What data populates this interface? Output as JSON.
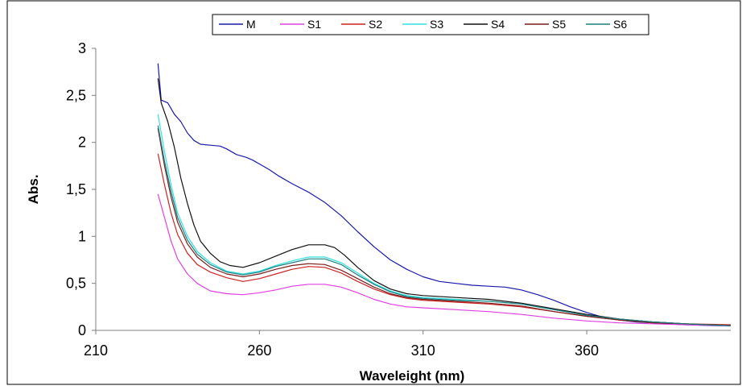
{
  "chart_data": {
    "type": "line",
    "title": "",
    "xlabel": "Waveleight (nm)",
    "ylabel": "Abs.",
    "xlim": [
      210,
      404
    ],
    "ylim": [
      0,
      3
    ],
    "xticks": [
      "210",
      "260",
      "310",
      "360"
    ],
    "yticks": [
      "0",
      "0,5",
      "1",
      "1,5",
      "2",
      "2,5",
      "3"
    ],
    "grid": false,
    "legend_position": "top",
    "series": [
      {
        "name": "M",
        "color": "#1a1aa8",
        "points": [
          [
            229,
            2.84
          ],
          [
            230,
            2.45
          ],
          [
            232,
            2.42
          ],
          [
            234,
            2.3
          ],
          [
            236,
            2.22
          ],
          [
            238,
            2.1
          ],
          [
            240,
            2.02
          ],
          [
            242,
            1.98
          ],
          [
            245,
            1.97
          ],
          [
            248,
            1.96
          ],
          [
            250,
            1.93
          ],
          [
            253,
            1.87
          ],
          [
            256,
            1.84
          ],
          [
            258,
            1.81
          ],
          [
            260,
            1.77
          ],
          [
            263,
            1.71
          ],
          [
            266,
            1.64
          ],
          [
            270,
            1.56
          ],
          [
            275,
            1.47
          ],
          [
            280,
            1.36
          ],
          [
            285,
            1.22
          ],
          [
            290,
            1.05
          ],
          [
            295,
            0.89
          ],
          [
            300,
            0.75
          ],
          [
            305,
            0.65
          ],
          [
            310,
            0.57
          ],
          [
            315,
            0.52
          ],
          [
            320,
            0.5
          ],
          [
            325,
            0.48
          ],
          [
            330,
            0.47
          ],
          [
            335,
            0.46
          ],
          [
            340,
            0.43
          ],
          [
            345,
            0.38
          ],
          [
            350,
            0.32
          ],
          [
            355,
            0.25
          ],
          [
            360,
            0.19
          ],
          [
            365,
            0.14
          ],
          [
            370,
            0.11
          ],
          [
            375,
            0.09
          ],
          [
            380,
            0.08
          ],
          [
            390,
            0.06
          ],
          [
            400,
            0.05
          ],
          [
            404,
            0.05
          ]
        ]
      },
      {
        "name": "S1",
        "color": "#e040e0",
        "points": [
          [
            229,
            1.45
          ],
          [
            231,
            1.2
          ],
          [
            233,
            0.95
          ],
          [
            235,
            0.76
          ],
          [
            238,
            0.6
          ],
          [
            241,
            0.5
          ],
          [
            245,
            0.42
          ],
          [
            250,
            0.39
          ],
          [
            255,
            0.38
          ],
          [
            260,
            0.4
          ],
          [
            265,
            0.43
          ],
          [
            270,
            0.47
          ],
          [
            275,
            0.49
          ],
          [
            280,
            0.49
          ],
          [
            285,
            0.46
          ],
          [
            290,
            0.4
          ],
          [
            295,
            0.33
          ],
          [
            300,
            0.28
          ],
          [
            305,
            0.25
          ],
          [
            310,
            0.24
          ],
          [
            320,
            0.22
          ],
          [
            330,
            0.2
          ],
          [
            340,
            0.17
          ],
          [
            350,
            0.13
          ],
          [
            360,
            0.1
          ],
          [
            370,
            0.08
          ],
          [
            380,
            0.07
          ],
          [
            390,
            0.06
          ],
          [
            404,
            0.05
          ]
        ]
      },
      {
        "name": "S2",
        "color": "#cc2222",
        "points": [
          [
            229,
            1.88
          ],
          [
            231,
            1.55
          ],
          [
            233,
            1.25
          ],
          [
            235,
            1.02
          ],
          [
            238,
            0.82
          ],
          [
            241,
            0.7
          ],
          [
            245,
            0.62
          ],
          [
            250,
            0.56
          ],
          [
            255,
            0.52
          ],
          [
            260,
            0.55
          ],
          [
            265,
            0.6
          ],
          [
            270,
            0.65
          ],
          [
            275,
            0.68
          ],
          [
            280,
            0.67
          ],
          [
            285,
            0.61
          ],
          [
            290,
            0.52
          ],
          [
            295,
            0.44
          ],
          [
            300,
            0.38
          ],
          [
            305,
            0.34
          ],
          [
            310,
            0.32
          ],
          [
            320,
            0.3
          ],
          [
            330,
            0.28
          ],
          [
            340,
            0.25
          ],
          [
            350,
            0.2
          ],
          [
            360,
            0.15
          ],
          [
            370,
            0.11
          ],
          [
            380,
            0.09
          ],
          [
            390,
            0.07
          ],
          [
            404,
            0.06
          ]
        ]
      },
      {
        "name": "S3",
        "color": "#33e0e0",
        "points": [
          [
            229,
            2.3
          ],
          [
            231,
            1.9
          ],
          [
            233,
            1.55
          ],
          [
            235,
            1.25
          ],
          [
            238,
            1.0
          ],
          [
            241,
            0.84
          ],
          [
            245,
            0.72
          ],
          [
            250,
            0.63
          ],
          [
            255,
            0.6
          ],
          [
            260,
            0.63
          ],
          [
            265,
            0.69
          ],
          [
            270,
            0.74
          ],
          [
            275,
            0.78
          ],
          [
            280,
            0.78
          ],
          [
            285,
            0.72
          ],
          [
            290,
            0.61
          ],
          [
            295,
            0.5
          ],
          [
            300,
            0.42
          ],
          [
            305,
            0.37
          ],
          [
            310,
            0.35
          ],
          [
            320,
            0.33
          ],
          [
            330,
            0.31
          ],
          [
            340,
            0.28
          ],
          [
            350,
            0.22
          ],
          [
            360,
            0.16
          ],
          [
            370,
            0.12
          ],
          [
            380,
            0.09
          ],
          [
            390,
            0.07
          ],
          [
            404,
            0.05
          ]
        ]
      },
      {
        "name": "S4",
        "color": "#111111",
        "points": [
          [
            229,
            2.68
          ],
          [
            230,
            2.42
          ],
          [
            232,
            2.22
          ],
          [
            234,
            1.95
          ],
          [
            236,
            1.62
          ],
          [
            238,
            1.35
          ],
          [
            240,
            1.12
          ],
          [
            242,
            0.95
          ],
          [
            245,
            0.82
          ],
          [
            248,
            0.73
          ],
          [
            251,
            0.69
          ],
          [
            255,
            0.67
          ],
          [
            260,
            0.72
          ],
          [
            265,
            0.79
          ],
          [
            270,
            0.86
          ],
          [
            275,
            0.91
          ],
          [
            280,
            0.91
          ],
          [
            283,
            0.88
          ],
          [
            286,
            0.8
          ],
          [
            290,
            0.67
          ],
          [
            295,
            0.53
          ],
          [
            300,
            0.44
          ],
          [
            305,
            0.39
          ],
          [
            310,
            0.37
          ],
          [
            320,
            0.35
          ],
          [
            330,
            0.33
          ],
          [
            340,
            0.29
          ],
          [
            350,
            0.23
          ],
          [
            360,
            0.17
          ],
          [
            370,
            0.12
          ],
          [
            380,
            0.09
          ],
          [
            390,
            0.07
          ],
          [
            404,
            0.05
          ]
        ]
      },
      {
        "name": "S5",
        "color": "#7a1c1c",
        "points": [
          [
            229,
            2.15
          ],
          [
            231,
            1.75
          ],
          [
            233,
            1.42
          ],
          [
            235,
            1.15
          ],
          [
            238,
            0.92
          ],
          [
            241,
            0.78
          ],
          [
            245,
            0.67
          ],
          [
            250,
            0.6
          ],
          [
            255,
            0.57
          ],
          [
            260,
            0.6
          ],
          [
            265,
            0.65
          ],
          [
            270,
            0.69
          ],
          [
            275,
            0.71
          ],
          [
            280,
            0.7
          ],
          [
            285,
            0.64
          ],
          [
            290,
            0.55
          ],
          [
            295,
            0.46
          ],
          [
            300,
            0.39
          ],
          [
            305,
            0.35
          ],
          [
            310,
            0.33
          ],
          [
            320,
            0.31
          ],
          [
            330,
            0.29
          ],
          [
            340,
            0.26
          ],
          [
            350,
            0.2
          ],
          [
            360,
            0.15
          ],
          [
            370,
            0.11
          ],
          [
            380,
            0.08
          ],
          [
            390,
            0.07
          ],
          [
            404,
            0.05
          ]
        ]
      },
      {
        "name": "S6",
        "color": "#1f7f7f",
        "points": [
          [
            229,
            2.18
          ],
          [
            231,
            1.8
          ],
          [
            233,
            1.48
          ],
          [
            235,
            1.2
          ],
          [
            238,
            0.96
          ],
          [
            241,
            0.81
          ],
          [
            245,
            0.7
          ],
          [
            250,
            0.62
          ],
          [
            255,
            0.59
          ],
          [
            260,
            0.62
          ],
          [
            265,
            0.68
          ],
          [
            270,
            0.72
          ],
          [
            275,
            0.76
          ],
          [
            280,
            0.76
          ],
          [
            285,
            0.7
          ],
          [
            290,
            0.59
          ],
          [
            295,
            0.49
          ],
          [
            300,
            0.41
          ],
          [
            305,
            0.36
          ],
          [
            310,
            0.34
          ],
          [
            320,
            0.32
          ],
          [
            330,
            0.31
          ],
          [
            340,
            0.28
          ],
          [
            350,
            0.22
          ],
          [
            360,
            0.16
          ],
          [
            370,
            0.12
          ],
          [
            380,
            0.09
          ],
          [
            390,
            0.07
          ],
          [
            404,
            0.05
          ]
        ]
      }
    ]
  }
}
